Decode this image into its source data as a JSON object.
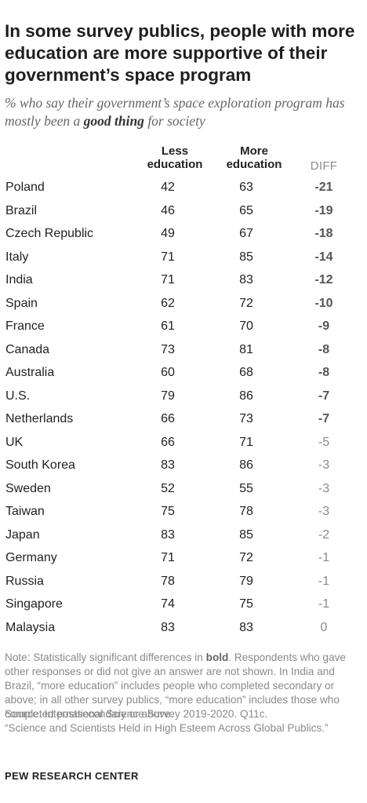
{
  "title": "In some survey publics, people with more education are more supportive of their government’s space program",
  "subtitle": {
    "before": "% who say their government’s space exploration program has mostly been a ",
    "emphasis": "good thing",
    "after": " for society"
  },
  "columns": {
    "less": "Less education",
    "more": "More education",
    "diff": "DIFF"
  },
  "chart_data": {
    "type": "table",
    "columns": [
      "Less education",
      "More education",
      "DIFF"
    ],
    "rows": [
      {
        "country": "Poland",
        "less": 42,
        "more": 63,
        "diff": "-21",
        "significant": true
      },
      {
        "country": "Brazil",
        "less": 46,
        "more": 65,
        "diff": "-19",
        "significant": true
      },
      {
        "country": "Czech Republic",
        "less": 49,
        "more": 67,
        "diff": "-18",
        "significant": true
      },
      {
        "country": "Italy",
        "less": 71,
        "more": 85,
        "diff": "-14",
        "significant": true
      },
      {
        "country": "India",
        "less": 71,
        "more": 83,
        "diff": "-12",
        "significant": true
      },
      {
        "country": "Spain",
        "less": 62,
        "more": 72,
        "diff": "-10",
        "significant": true
      },
      {
        "country": "France",
        "less": 61,
        "more": 70,
        "diff": "-9",
        "significant": true
      },
      {
        "country": "Canada",
        "less": 73,
        "more": 81,
        "diff": "-8",
        "significant": true
      },
      {
        "country": "Australia",
        "less": 60,
        "more": 68,
        "diff": "-8",
        "significant": true
      },
      {
        "country": "U.S.",
        "less": 79,
        "more": 86,
        "diff": "-7",
        "significant": true
      },
      {
        "country": "Netherlands",
        "less": 66,
        "more": 73,
        "diff": "-7",
        "significant": true
      },
      {
        "country": "UK",
        "less": 66,
        "more": 71,
        "diff": "-5",
        "significant": false
      },
      {
        "country": "South Korea",
        "less": 83,
        "more": 86,
        "diff": "-3",
        "significant": false
      },
      {
        "country": "Sweden",
        "less": 52,
        "more": 55,
        "diff": "-3",
        "significant": false
      },
      {
        "country": "Taiwan",
        "less": 75,
        "more": 78,
        "diff": "-3",
        "significant": false
      },
      {
        "country": "Japan",
        "less": 83,
        "more": 85,
        "diff": "-2",
        "significant": false
      },
      {
        "country": "Germany",
        "less": 71,
        "more": 72,
        "diff": "-1",
        "significant": false
      },
      {
        "country": "Russia",
        "less": 78,
        "more": 79,
        "diff": "-1",
        "significant": false
      },
      {
        "country": "Singapore",
        "less": 74,
        "more": 75,
        "diff": "-1",
        "significant": false
      },
      {
        "country": "Malaysia",
        "less": 83,
        "more": 83,
        "diff": "0",
        "significant": false
      }
    ]
  },
  "note": {
    "before": "Note: Statistically significant differences in ",
    "bold": "bold",
    "after": ". Respondents who gave other responses or did not give an answer are not shown. In India and Brazil, “more education” includes people who completed secondary or above; in all other survey publics, “more education” includes those who completed postsecondary or above."
  },
  "source": "Source: International Science Survey 2019-2020. Q11c.",
  "report": "“Science and Scientists Held in High Esteem Across Global Publics.”",
  "brand": "PEW RESEARCH CENTER",
  "colors": {
    "text": "#222222",
    "muted": "#8a8a8a",
    "significant": "#555555"
  }
}
